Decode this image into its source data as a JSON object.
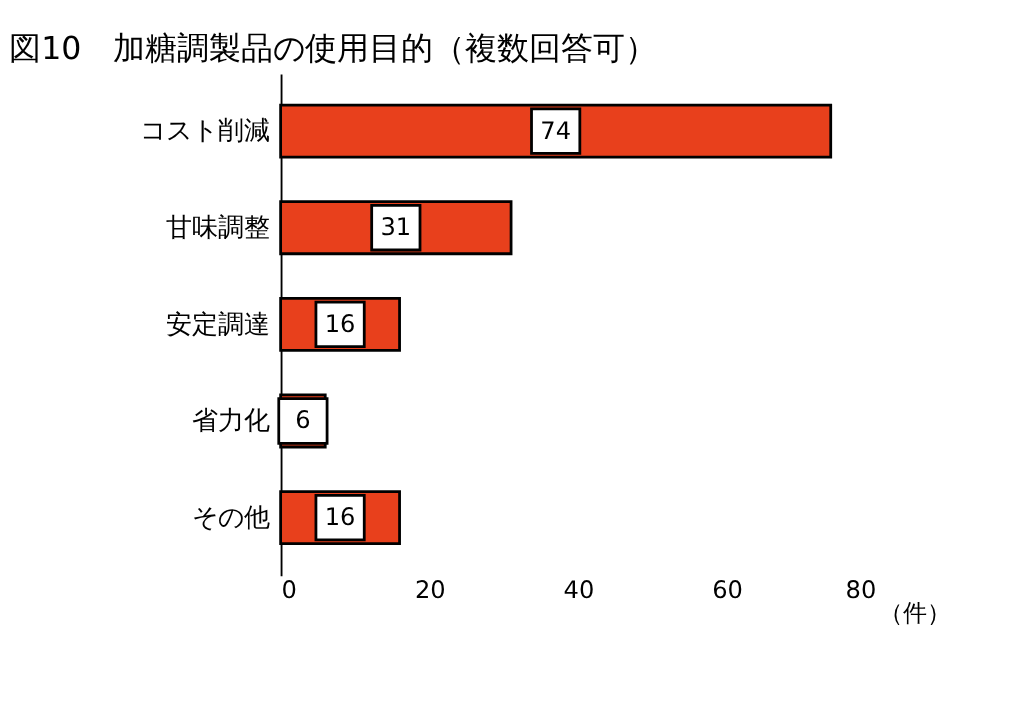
{
  "chart_data": {
    "type": "bar",
    "orientation": "horizontal",
    "title": "図10　加糖調製品の使用目的（複数回答可）",
    "xlabel": "（件）",
    "categories": [
      "コスト削減",
      "甘味調整",
      "安定調達",
      "省力化",
      "その他"
    ],
    "values": [
      74,
      31,
      16,
      6,
      16
    ],
    "color": "#e8401c",
    "xlim": [
      0,
      80
    ],
    "xticks": [
      0,
      20,
      40,
      60,
      80
    ],
    "data_labels": true,
    "grid": false
  }
}
